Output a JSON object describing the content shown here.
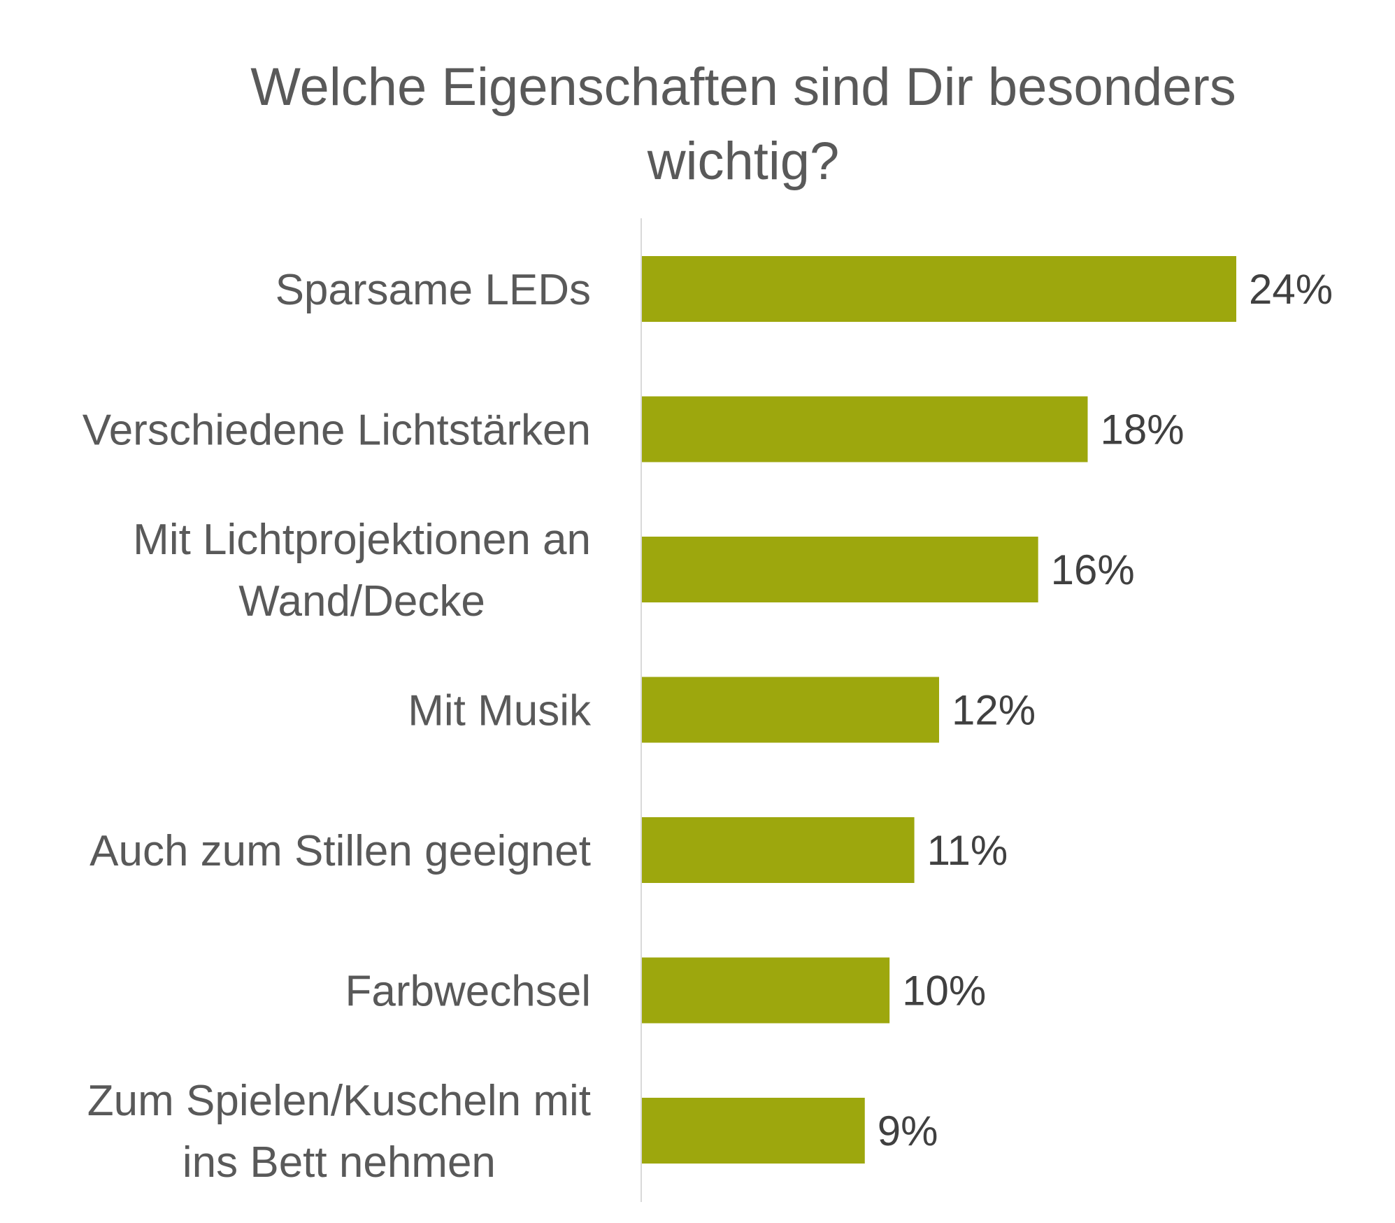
{
  "chart_data": {
    "type": "bar",
    "orientation": "horizontal",
    "title": "Welche Eigenschaften sind Dir besonders wichtig?",
    "title_lines": [
      "Welche Eigenschaften sind Dir besonders",
      "wichtig?"
    ],
    "categories": [
      "Sparsame LEDs",
      "Verschiedene Lichtstärken",
      "Mit Lichtprojektionen an Wand/Decke",
      "Mit Musik",
      "Auch zum Stillen geeignet",
      "Farbwechsel",
      "Zum Spielen/Kuscheln mit ins Bett nehmen"
    ],
    "category_lines": [
      [
        "Sparsame LEDs"
      ],
      [
        "Verschiedene Lichtstärken"
      ],
      [
        "Mit Lichtprojektionen an",
        "Wand/Decke"
      ],
      [
        "Mit Musik"
      ],
      [
        "Auch zum Stillen geeignet"
      ],
      [
        "Farbwechsel"
      ],
      [
        "Zum Spielen/Kuscheln mit",
        "ins Bett nehmen"
      ]
    ],
    "values": [
      24,
      18,
      16,
      12,
      11,
      10,
      9
    ],
    "value_labels": [
      "24%",
      "18%",
      "16%",
      "12%",
      "11%",
      "10%",
      "9%"
    ],
    "xlim": [
      0,
      24
    ],
    "xlabel": "",
    "ylabel": "",
    "grid": false,
    "legend": "none",
    "colors": {
      "bar": "#9DA70D",
      "axis": "#D9D9D9",
      "title": "#595959",
      "category_text": "#595959",
      "value_text": "#404040"
    }
  }
}
